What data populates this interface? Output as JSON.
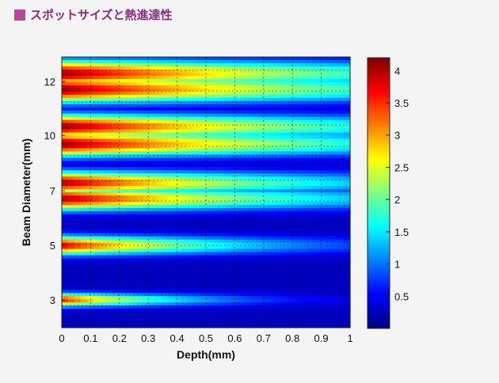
{
  "header": {
    "title": "スポットサイズと熱進達性"
  },
  "chart_data": {
    "type": "heatmap",
    "title": "スポットサイズと熱進達性",
    "xlabel": "Depth(mm)",
    "ylabel": "Beam Diameter(mm)",
    "xlim": [
      0,
      1
    ],
    "x_ticks": [
      "0",
      "0.1",
      "0.2",
      "0.3",
      "0.4",
      "0.5",
      "0.6",
      "0.7",
      "0.8",
      "0.9",
      "1"
    ],
    "y_ticks": [
      "3",
      "5",
      "7",
      "10",
      "12"
    ],
    "colorbar": {
      "range": [
        0,
        4.2
      ],
      "ticks": [
        "0.5",
        "1",
        "1.5",
        "2",
        "2.5",
        "3",
        "3.5",
        "4"
      ]
    },
    "grid": "dotted",
    "series": [
      {
        "name": "3",
        "peak": 3.6,
        "decay_depth": 0.45,
        "band_halfwidth_rows": 0.7
      },
      {
        "name": "5",
        "peak": 3.8,
        "decay_depth": 0.65,
        "band_halfwidth_rows": 1.0
      },
      {
        "name": "7",
        "peak": 4.0,
        "decay_depth": 0.95,
        "band_halfwidth_rows": 1.2
      },
      {
        "name": "10",
        "peak": 4.1,
        "decay_depth": 1.15,
        "band_halfwidth_rows": 1.3
      },
      {
        "name": "12",
        "peak": 4.1,
        "decay_depth": 1.25,
        "band_halfwidth_rows": 1.4
      }
    ]
  }
}
